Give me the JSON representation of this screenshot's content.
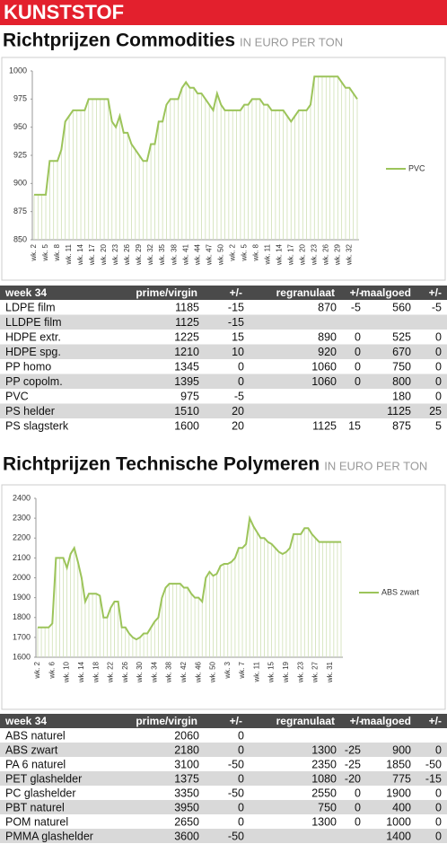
{
  "section": "KUNSTSTOF",
  "chart_data": [
    {
      "type": "line",
      "title": "Richtprijzen Commodities",
      "subtitle": "IN EURO PER TON",
      "categories": [
        "wk. 2",
        null,
        null,
        "wk. 5",
        null,
        null,
        "wk. 8",
        null,
        null,
        "wk. 11",
        null,
        null,
        "wk. 14",
        null,
        null,
        "wk. 17",
        null,
        null,
        "wk. 20",
        null,
        null,
        "wk. 23",
        null,
        null,
        "wk. 26",
        null,
        null,
        "wk. 29",
        null,
        null,
        "wk. 32",
        null,
        null,
        "wk. 35",
        null,
        null,
        "wk. 38",
        null,
        null,
        "wk. 41",
        null,
        null,
        "wk. 44",
        null,
        null,
        "wk. 47",
        null,
        null,
        "wk. 50",
        null,
        null,
        "wk. 2",
        null,
        null,
        "wk. 5",
        null,
        null,
        "wk. 8",
        null,
        null,
        "wk. 11",
        null,
        null,
        "wk. 14",
        null,
        null,
        "wk. 17",
        null,
        null,
        "wk. 20",
        null,
        null,
        "wk. 23",
        null,
        null,
        "wk. 26",
        null,
        null,
        "wk. 29",
        null,
        null,
        "wk. 32",
        null,
        null
      ],
      "series": [
        {
          "name": "PVC",
          "color": "#9cc45a",
          "values": [
            890,
            890,
            890,
            890,
            920,
            920,
            920,
            930,
            955,
            960,
            965,
            965,
            965,
            965,
            975,
            975,
            975,
            975,
            975,
            975,
            955,
            950,
            960,
            945,
            945,
            935,
            930,
            925,
            920,
            920,
            935,
            935,
            955,
            955,
            970,
            975,
            975,
            975,
            985,
            990,
            985,
            985,
            980,
            980,
            975,
            970,
            965,
            980,
            970,
            965,
            965,
            965,
            965,
            965,
            970,
            970,
            975,
            975,
            975,
            970,
            970,
            965,
            965,
            965,
            965,
            960,
            955,
            960,
            965,
            965,
            965,
            970,
            995,
            995,
            995,
            995,
            995,
            995,
            995,
            990,
            985,
            985,
            980,
            975
          ]
        }
      ],
      "ylim": [
        850,
        1000
      ],
      "yticks": [
        850,
        875,
        900,
        925,
        950,
        975,
        1000
      ],
      "drop_lines": true,
      "legend": "right"
    },
    {
      "type": "line",
      "title": "Richtprijzen Technische Polymeren",
      "subtitle": "IN EURO PER TON",
      "categories": [
        "wk. 2",
        null,
        null,
        null,
        "wk. 6",
        null,
        null,
        null,
        "wk. 10",
        null,
        null,
        null,
        "wk. 14",
        null,
        null,
        null,
        "wk. 18",
        null,
        null,
        null,
        "wk. 22",
        null,
        null,
        null,
        "wk. 26",
        null,
        null,
        null,
        "wk. 30",
        null,
        null,
        null,
        "wk. 34",
        null,
        null,
        null,
        "wk. 38",
        null,
        null,
        null,
        "wk. 42",
        null,
        null,
        null,
        "wk. 46",
        null,
        null,
        null,
        "wk. 50",
        null,
        null,
        null,
        "wk. 3",
        null,
        null,
        null,
        "wk. 7",
        null,
        null,
        null,
        "wk. 11",
        null,
        null,
        null,
        "wk. 15",
        null,
        null,
        null,
        "wk. 19",
        null,
        null,
        null,
        "wk. 23",
        null,
        null,
        null,
        "wk. 27",
        null,
        null,
        null,
        "wk. 31",
        null,
        null,
        null
      ],
      "series": [
        {
          "name": "ABS zwart",
          "color": "#9cc45a",
          "values": [
            1750,
            1750,
            1750,
            1750,
            1770,
            2100,
            2100,
            2100,
            2050,
            2120,
            2150,
            2080,
            2000,
            1880,
            1920,
            1920,
            1920,
            1910,
            1800,
            1800,
            1850,
            1880,
            1880,
            1750,
            1750,
            1720,
            1700,
            1690,
            1700,
            1720,
            1720,
            1750,
            1780,
            1800,
            1900,
            1950,
            1970,
            1970,
            1970,
            1970,
            1950,
            1950,
            1920,
            1900,
            1900,
            1880,
            2000,
            2030,
            2010,
            2020,
            2060,
            2070,
            2070,
            2080,
            2100,
            2150,
            2150,
            2170,
            2300,
            2260,
            2230,
            2200,
            2200,
            2180,
            2170,
            2150,
            2130,
            2120,
            2130,
            2150,
            2220,
            2220,
            2220,
            2250,
            2250,
            2220,
            2200,
            2180,
            2180,
            2180,
            2180,
            2180,
            2180,
            2180
          ]
        }
      ],
      "ylim": [
        1600,
        2400
      ],
      "yticks": [
        1600,
        1700,
        1800,
        1900,
        2000,
        2100,
        2200,
        2300,
        2400
      ],
      "drop_lines": true,
      "legend": "right"
    }
  ],
  "tables": [
    {
      "header": [
        "week 34",
        "prime/virgin",
        "+/-",
        "regranulaat",
        "+/-",
        "maalgoed",
        "+/-"
      ],
      "rows": [
        [
          "LDPE film",
          1185,
          -15,
          870,
          -5,
          560,
          -5
        ],
        [
          "LLDPE film",
          1125,
          -15,
          null,
          null,
          null,
          null
        ],
        [
          "HDPE extr.",
          1225,
          15,
          890,
          0,
          525,
          0
        ],
        [
          "HDPE spg.",
          1210,
          10,
          920,
          0,
          670,
          0
        ],
        [
          "PP homo",
          1345,
          0,
          1060,
          0,
          750,
          0
        ],
        [
          "PP copolm.",
          1395,
          0,
          1060,
          0,
          800,
          0
        ],
        [
          "PVC",
          975,
          -5,
          null,
          null,
          180,
          0
        ],
        [
          "PS helder",
          1510,
          20,
          null,
          null,
          1125,
          25
        ],
        [
          "PS slagsterk",
          1600,
          20,
          1125,
          15,
          875,
          5
        ]
      ]
    },
    {
      "header": [
        "week 34",
        "prime/virgin",
        "+/-",
        "regranulaat",
        "+/-",
        "maalgoed",
        "+/-"
      ],
      "rows": [
        [
          "ABS naturel",
          2060,
          0,
          null,
          null,
          null,
          null
        ],
        [
          "ABS zwart",
          2180,
          0,
          1300,
          -25,
          900,
          0
        ],
        [
          "PA 6 naturel",
          3100,
          -50,
          2350,
          -25,
          1850,
          -50
        ],
        [
          "PET glashelder",
          1375,
          0,
          1080,
          -20,
          775,
          -15
        ],
        [
          "PC glashelder",
          3350,
          -50,
          2550,
          0,
          1900,
          0
        ],
        [
          "PBT naturel",
          3950,
          0,
          750,
          0,
          400,
          0
        ],
        [
          "POM naturel",
          2650,
          0,
          1300,
          0,
          1000,
          0
        ],
        [
          "PMMA glashelder",
          3600,
          -50,
          null,
          null,
          1400,
          0
        ]
      ]
    }
  ]
}
